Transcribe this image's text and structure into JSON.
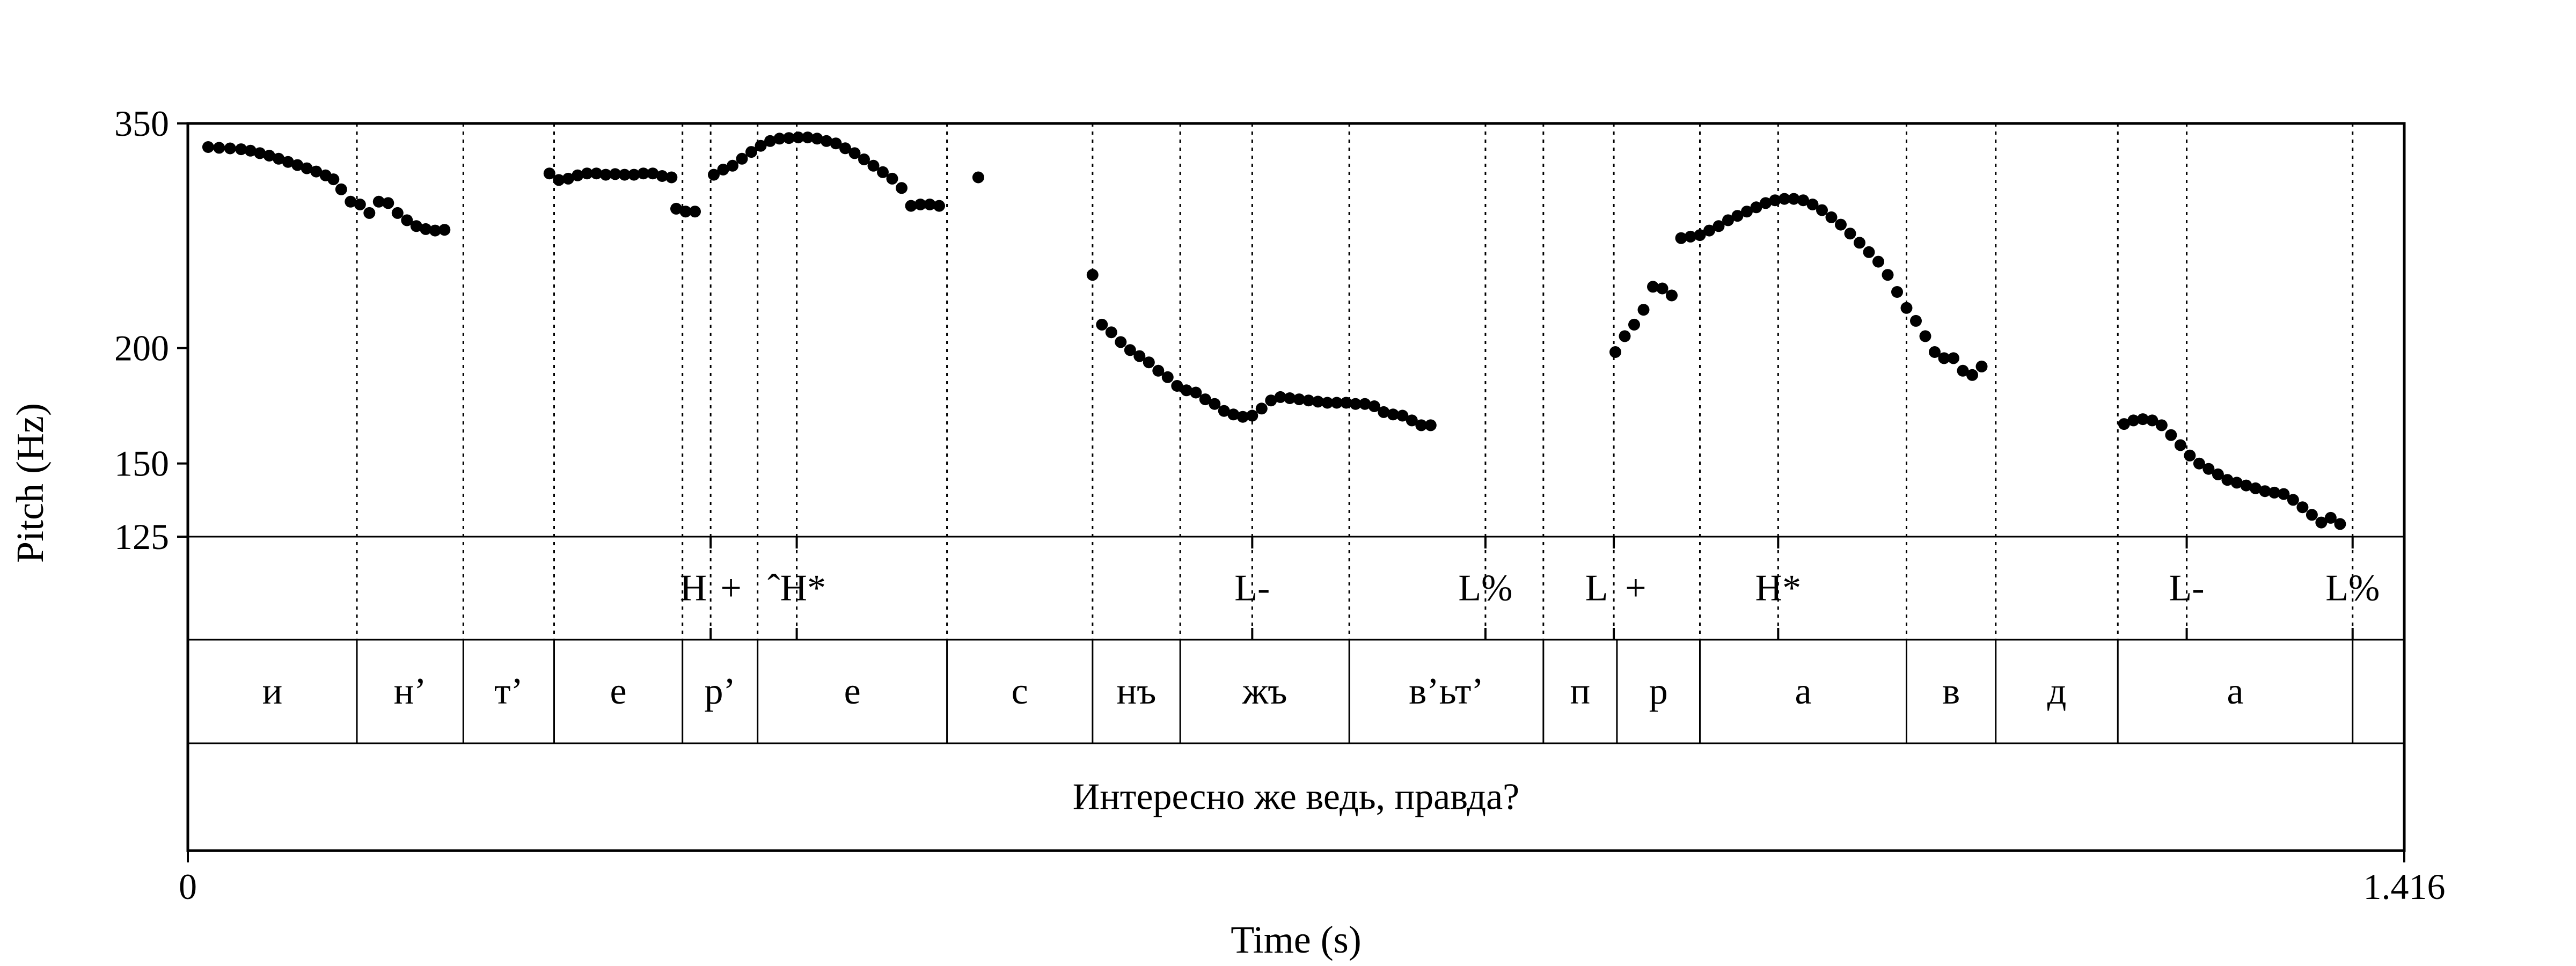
{
  "chart_data": {
    "type": "scatter",
    "title": "",
    "xlabel": "Time (s)",
    "ylabel": "Pitch (Hz)",
    "xlim": [
      0,
      1.416
    ],
    "ylim": [
      125,
      350
    ],
    "y_scale": "log",
    "x_tick_labels": [
      "0",
      "1.416"
    ],
    "y_tick_labels": [
      "125",
      "150",
      "200",
      "350"
    ],
    "y_ticks": [
      125,
      150,
      200,
      350
    ],
    "grid": false,
    "pitch_points": [
      [
        0.013,
        330
      ],
      [
        0.02,
        329.4
      ],
      [
        0.027,
        328.9
      ],
      [
        0.034,
        328.2
      ],
      [
        0.04,
        327
      ],
      [
        0.046,
        325
      ],
      [
        0.052,
        323
      ],
      [
        0.058,
        320.5
      ],
      [
        0.064,
        318
      ],
      [
        0.07,
        315.5
      ],
      [
        0.076,
        313
      ],
      [
        0.082,
        310.5
      ],
      [
        0.088,
        307.5
      ],
      [
        0.093,
        304.5
      ],
      [
        0.098,
        297
      ],
      [
        0.104,
        288
      ],
      [
        0.11,
        286
      ],
      [
        0.116,
        280
      ],
      [
        0.122,
        288
      ],
      [
        0.128,
        287
      ],
      [
        0.134,
        280
      ],
      [
        0.14,
        275
      ],
      [
        0.146,
        271
      ],
      [
        0.152,
        269
      ],
      [
        0.158,
        268
      ],
      [
        0.164,
        268.5
      ],
      [
        0.231,
        309
      ],
      [
        0.237,
        304
      ],
      [
        0.243,
        305
      ],
      [
        0.249,
        307.5
      ],
      [
        0.255,
        309
      ],
      [
        0.261,
        309
      ],
      [
        0.267,
        308
      ],
      [
        0.273,
        308.5
      ],
      [
        0.279,
        308
      ],
      [
        0.285,
        308
      ],
      [
        0.291,
        309
      ],
      [
        0.297,
        309
      ],
      [
        0.303,
        307
      ],
      [
        0.309,
        306
      ],
      [
        0.312,
        283
      ],
      [
        0.318,
        281
      ],
      [
        0.324,
        281
      ],
      [
        0.336,
        308
      ],
      [
        0.342,
        312
      ],
      [
        0.348,
        315
      ],
      [
        0.354,
        320.5
      ],
      [
        0.36,
        326
      ],
      [
        0.366,
        331
      ],
      [
        0.372,
        335
      ],
      [
        0.378,
        337
      ],
      [
        0.384,
        337.5
      ],
      [
        0.39,
        338
      ],
      [
        0.396,
        338
      ],
      [
        0.402,
        337
      ],
      [
        0.408,
        335
      ],
      [
        0.414,
        333
      ],
      [
        0.42,
        329
      ],
      [
        0.426,
        325
      ],
      [
        0.432,
        320
      ],
      [
        0.438,
        315
      ],
      [
        0.444,
        310
      ],
      [
        0.45,
        305
      ],
      [
        0.456,
        298
      ],
      [
        0.462,
        285
      ],
      [
        0.468,
        286
      ],
      [
        0.474,
        286
      ],
      [
        0.48,
        285
      ],
      [
        0.505,
        306
      ],
      [
        0.578,
        240
      ],
      [
        0.584,
        212
      ],
      [
        0.59,
        208
      ],
      [
        0.596,
        203
      ],
      [
        0.602,
        199
      ],
      [
        0.608,
        196
      ],
      [
        0.614,
        193
      ],
      [
        0.62,
        189
      ],
      [
        0.626,
        186
      ],
      [
        0.632,
        182
      ],
      [
        0.638,
        180
      ],
      [
        0.644,
        179
      ],
      [
        0.65,
        176
      ],
      [
        0.656,
        174
      ],
      [
        0.662,
        171
      ],
      [
        0.668,
        169.5
      ],
      [
        0.674,
        168.5
      ],
      [
        0.68,
        169
      ],
      [
        0.686,
        172
      ],
      [
        0.692,
        175.5
      ],
      [
        0.698,
        177
      ],
      [
        0.704,
        176.5
      ],
      [
        0.71,
        176
      ],
      [
        0.716,
        175.5
      ],
      [
        0.722,
        175
      ],
      [
        0.728,
        174.5
      ],
      [
        0.734,
        174.5
      ],
      [
        0.74,
        174.5
      ],
      [
        0.746,
        174
      ],
      [
        0.752,
        174
      ],
      [
        0.758,
        173
      ],
      [
        0.764,
        170.5
      ],
      [
        0.77,
        169.5
      ],
      [
        0.776,
        169
      ],
      [
        0.782,
        167
      ],
      [
        0.788,
        165
      ],
      [
        0.794,
        165
      ],
      [
        0.912,
        198
      ],
      [
        0.918,
        206
      ],
      [
        0.924,
        212
      ],
      [
        0.93,
        220
      ],
      [
        0.936,
        233
      ],
      [
        0.942,
        232
      ],
      [
        0.948,
        228
      ],
      [
        0.954,
        263
      ],
      [
        0.96,
        264
      ],
      [
        0.966,
        265
      ],
      [
        0.972,
        268
      ],
      [
        0.978,
        271
      ],
      [
        0.984,
        275
      ],
      [
        0.99,
        278
      ],
      [
        0.996,
        281
      ],
      [
        1.002,
        284
      ],
      [
        1.008,
        287
      ],
      [
        1.014,
        289
      ],
      [
        1.02,
        290
      ],
      [
        1.026,
        290
      ],
      [
        1.032,
        289
      ],
      [
        1.038,
        286
      ],
      [
        1.044,
        282
      ],
      [
        1.05,
        277
      ],
      [
        1.056,
        272
      ],
      [
        1.062,
        266
      ],
      [
        1.068,
        260
      ],
      [
        1.074,
        254
      ],
      [
        1.08,
        248
      ],
      [
        1.086,
        240
      ],
      [
        1.092,
        230
      ],
      [
        1.098,
        221
      ],
      [
        1.104,
        214
      ],
      [
        1.11,
        206
      ],
      [
        1.116,
        198
      ],
      [
        1.122,
        195
      ],
      [
        1.128,
        195
      ],
      [
        1.134,
        189
      ],
      [
        1.14,
        187
      ],
      [
        1.146,
        191
      ],
      [
        1.237,
        165.5
      ],
      [
        1.243,
        167
      ],
      [
        1.249,
        167.5
      ],
      [
        1.255,
        167
      ],
      [
        1.261,
        165
      ],
      [
        1.267,
        161
      ],
      [
        1.273,
        157
      ],
      [
        1.279,
        153
      ],
      [
        1.285,
        150
      ],
      [
        1.291,
        148
      ],
      [
        1.297,
        146
      ],
      [
        1.303,
        144
      ],
      [
        1.309,
        143
      ],
      [
        1.315,
        142
      ],
      [
        1.321,
        141
      ],
      [
        1.327,
        140
      ],
      [
        1.333,
        139.5
      ],
      [
        1.339,
        139
      ],
      [
        1.345,
        137
      ],
      [
        1.351,
        134.5
      ],
      [
        1.357,
        132
      ],
      [
        1.363,
        129.5
      ],
      [
        1.369,
        131
      ],
      [
        1.375,
        129
      ]
    ],
    "tone_tier": {
      "marks": [
        0.334,
        0.389,
        0.68,
        0.829,
        0.911,
        1.016,
        1.277,
        1.383
      ],
      "labels": [
        {
          "text": "H",
          "x": 0.323
        },
        {
          "text": "+",
          "x": 0.347
        },
        {
          "text": "ˆH*",
          "x": 0.389
        },
        {
          "text": "L-",
          "x": 0.68
        },
        {
          "text": "L%",
          "x": 0.829
        },
        {
          "text": "L",
          "x": 0.9
        },
        {
          "text": "+",
          "x": 0.925
        },
        {
          "text": "H*",
          "x": 1.016
        },
        {
          "text": "L-",
          "x": 1.277
        },
        {
          "text": "L%",
          "x": 1.383
        }
      ]
    },
    "segment_tier": {
      "boundaries": [
        0,
        0.108,
        0.176,
        0.234,
        0.316,
        0.364,
        0.485,
        0.578,
        0.634,
        0.742,
        0.866,
        0.913,
        0.966,
        1.098,
        1.155,
        1.233,
        1.383,
        1.416
      ],
      "labels": [
        "и",
        "н’",
        "т’",
        "е",
        "р’",
        "е",
        "с",
        "нъ",
        "жъ",
        "в’ьт’",
        "п",
        "р",
        "а",
        "в",
        "д",
        "а",
        ""
      ]
    },
    "sentence_tier": {
      "text": "Интересно же ведь, правда?"
    },
    "dotted_guides": [
      0.108,
      0.176,
      0.234,
      0.316,
      0.334,
      0.364,
      0.389,
      0.485,
      0.578,
      0.634,
      0.68,
      0.742,
      0.829,
      0.866,
      0.911,
      0.966,
      1.016,
      1.098,
      1.155,
      1.233,
      1.277,
      1.383
    ]
  }
}
